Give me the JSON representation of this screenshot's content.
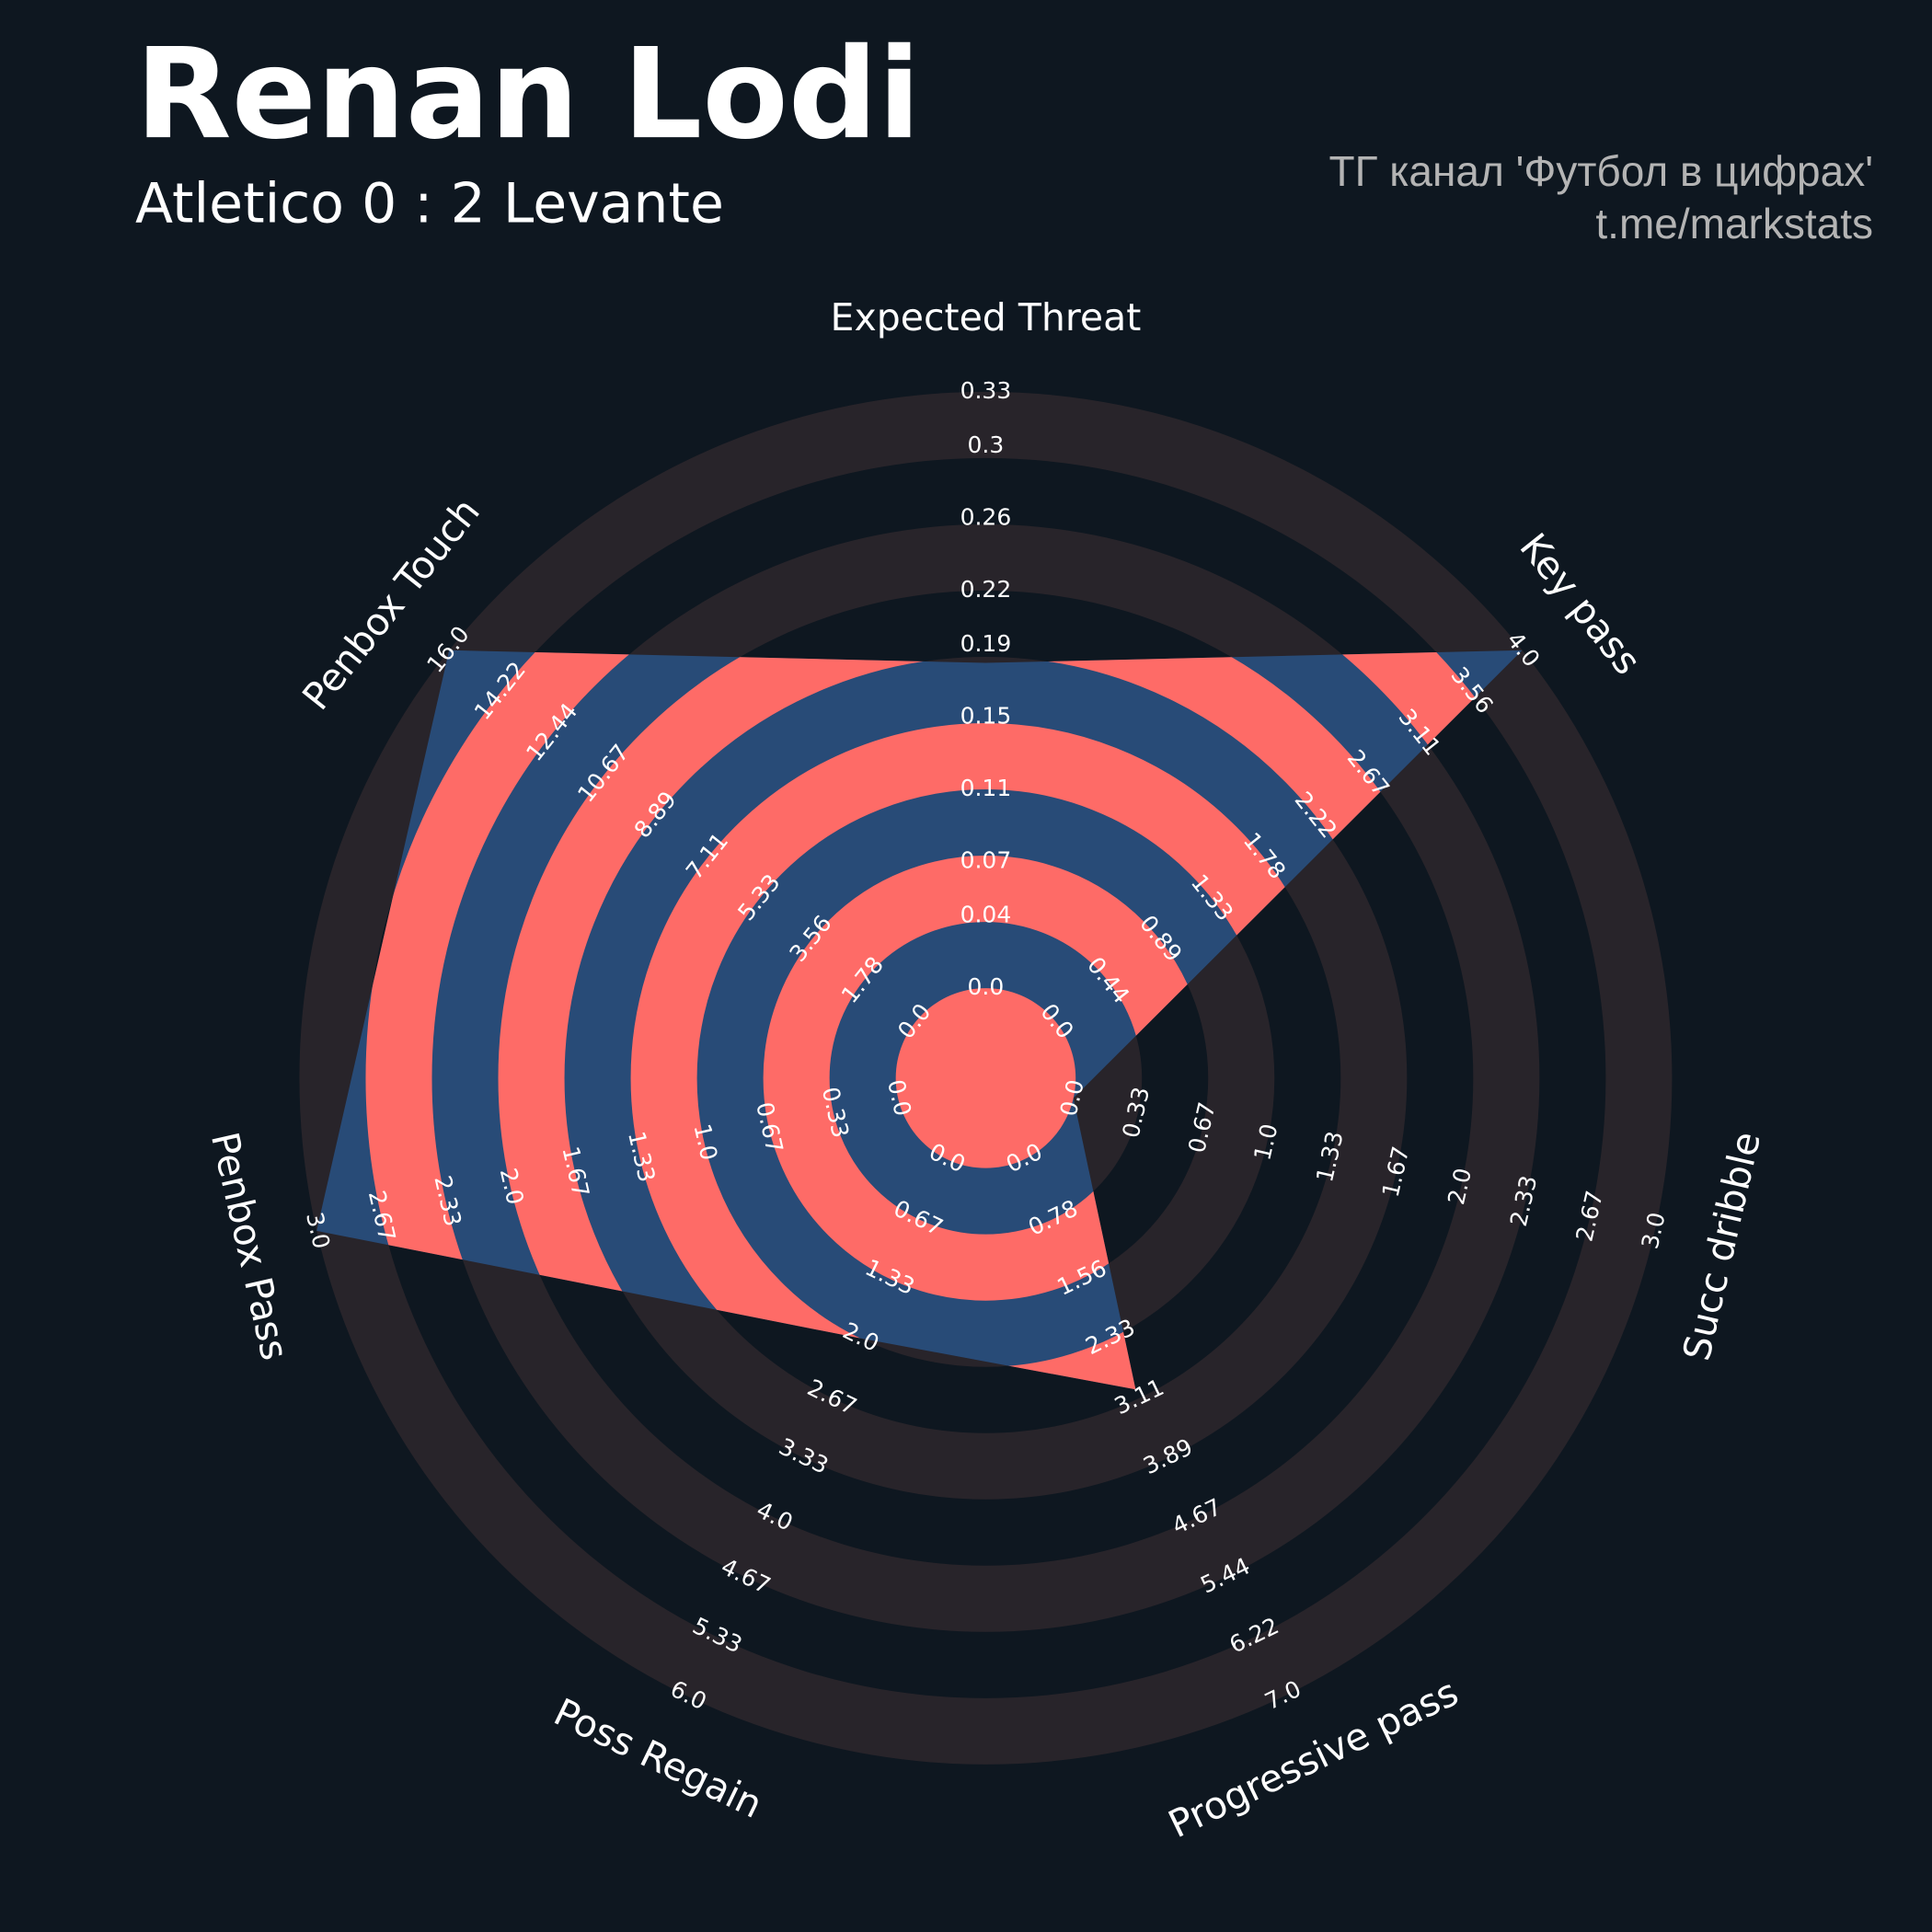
{
  "chart_data": {
    "type": "radar",
    "title": "Renan Lodi",
    "subtitle": "Atletico 0 : 2 Levante",
    "credits": [
      "ТГ канал 'Футбол в цифрах'",
      "t.me/markstats"
    ],
    "color": "#284b77",
    "ring_color": "#fe6b67",
    "background_ring_color": "#28242a",
    "axes": [
      {
        "name": "Expected Threat",
        "lim": [
          0,
          0.33
        ],
        "ticks": [
          {
            "value": 0,
            "label": "0.0"
          },
          0.04,
          0.07,
          0.11,
          0.15,
          0.19,
          0.22,
          0.26,
          0.3,
          0.33
        ]
      },
      {
        "name": "Key pass",
        "lim": [
          0,
          4
        ],
        "ticks": [
          {
            "value": 0,
            "label": "0.0"
          },
          0.44,
          0.89,
          1.33,
          1.78,
          2.22,
          2.67,
          3.11,
          3.56,
          {
            "value": 4,
            "label": "4.0"
          }
        ]
      },
      {
        "name": "Succ dribble",
        "lim": [
          0,
          3
        ],
        "ticks": [
          {
            "value": 0,
            "label": "0.0"
          },
          0.33,
          0.67,
          {
            "value": 1,
            "label": "1.0"
          },
          1.33,
          1.67,
          {
            "value": 2,
            "label": "2.0"
          },
          2.33,
          2.67,
          {
            "value": 3,
            "label": "3.0"
          }
        ]
      },
      {
        "name": "Progressive pass",
        "lim": [
          0,
          7
        ],
        "ticks": [
          {
            "value": 0,
            "label": "0.0"
          },
          0.78,
          1.56,
          2.33,
          3.11,
          3.89,
          4.67,
          5.44,
          6.22,
          {
            "value": 7,
            "label": "7.0"
          }
        ]
      },
      {
        "name": "Poss Regain",
        "lim": [
          0,
          6
        ],
        "ticks": [
          {
            "value": 0,
            "label": "0.0"
          },
          0.67,
          1.33,
          {
            "value": 2,
            "label": "2.0"
          },
          2.67,
          3.33,
          {
            "value": 4,
            "label": "4.0"
          },
          4.67,
          5.33,
          {
            "value": 6,
            "label": "6.0"
          }
        ]
      },
      {
        "name": "Penbox Pass",
        "lim": [
          0,
          3
        ],
        "ticks": [
          {
            "value": 0,
            "label": "0.0"
          },
          0.33,
          0.67,
          {
            "value": 1,
            "label": "1.0"
          },
          1.33,
          1.67,
          {
            "value": 2,
            "label": "2.0"
          },
          2.33,
          2.67,
          {
            "value": 3,
            "label": "3.0"
          }
        ]
      },
      {
        "name": "Penbox Touch",
        "lim": [
          0,
          16
        ],
        "ticks": [
          {
            "value": 0,
            "label": "0.0"
          },
          1.78,
          3.56,
          5.33,
          7.11,
          8.89,
          10.67,
          12.44,
          14.22,
          {
            "value": 16,
            "label": "16.0"
          }
        ]
      }
    ],
    "values": [
      0.18,
      4,
      0,
      3,
      2,
      3,
      16
    ]
  }
}
